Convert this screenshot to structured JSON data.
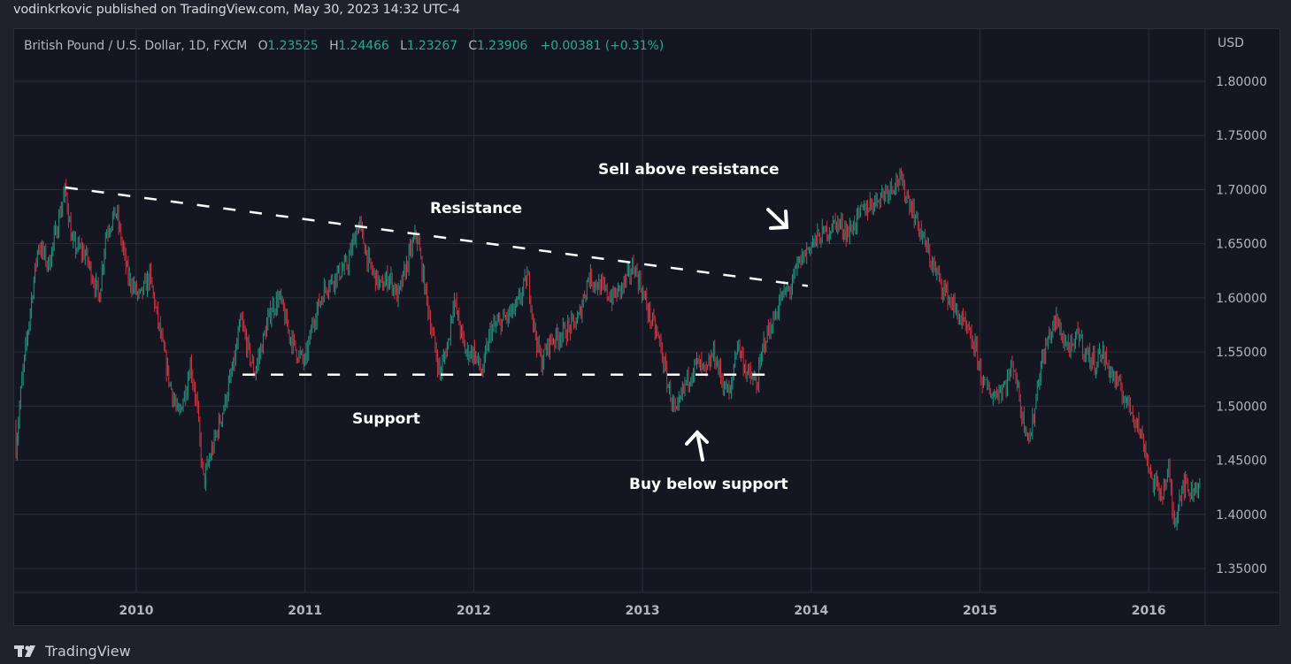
{
  "header": {
    "publisher_line": "vodinkrkovic published on TradingView.com, May 30, 2023 14:32 UTC-4"
  },
  "legend": {
    "symbol": "British Pound / U.S. Dollar, 1D, FXCM",
    "open_label": "O",
    "open": "1.23525",
    "high_label": "H",
    "high": "1.24466",
    "low_label": "L",
    "low": "1.23267",
    "close_label": "C",
    "close": "1.23906",
    "change": "+0.00381 (+0.31%)"
  },
  "price_axis": {
    "currency": "USD",
    "ticks": [
      "1.80000",
      "1.75000",
      "1.70000",
      "1.65000",
      "1.60000",
      "1.55000",
      "1.50000",
      "1.45000",
      "1.40000",
      "1.35000"
    ]
  },
  "time_axis": {
    "ticks": [
      "2010",
      "2011",
      "2012",
      "2013",
      "2014",
      "2015",
      "2016"
    ]
  },
  "annotations": {
    "resistance_label": "Resistance",
    "support_label": "Support",
    "sell_label": "Sell above resistance",
    "buy_label": "Buy below support"
  },
  "branding": {
    "logo_text": "TradingView",
    "logo_mark": "TV-logo-icon"
  },
  "colors": {
    "up": "#22ab94",
    "down": "#f23645",
    "background": "#141722",
    "frame": "#1f222c",
    "grid": "#2a2e39",
    "annotation": "#ffffff"
  },
  "chart_data": {
    "type": "candlestick",
    "title": "British Pound / U.S. Dollar, 1D, FXCM",
    "ylabel": "USD",
    "ylim": [
      1.33,
      1.82
    ],
    "xlim": [
      2009.25,
      2016.35
    ],
    "grid": true,
    "x_ticks": [
      2010,
      2011,
      2012,
      2013,
      2014,
      2015,
      2016
    ],
    "y_ticks": [
      1.35,
      1.4,
      1.45,
      1.5,
      1.55,
      1.6,
      1.65,
      1.7,
      1.75,
      1.8
    ],
    "close_path": [
      [
        2009.25,
        1.48
      ],
      [
        2009.28,
        1.45
      ],
      [
        2009.32,
        1.52
      ],
      [
        2009.38,
        1.6
      ],
      [
        2009.42,
        1.65
      ],
      [
        2009.48,
        1.63
      ],
      [
        2009.55,
        1.68
      ],
      [
        2009.58,
        1.7
      ],
      [
        2009.62,
        1.65
      ],
      [
        2009.7,
        1.64
      ],
      [
        2009.78,
        1.6
      ],
      [
        2009.82,
        1.66
      ],
      [
        2009.88,
        1.68
      ],
      [
        2009.95,
        1.62
      ],
      [
        2010.02,
        1.6
      ],
      [
        2010.08,
        1.62
      ],
      [
        2010.15,
        1.56
      ],
      [
        2010.2,
        1.52
      ],
      [
        2010.25,
        1.49
      ],
      [
        2010.3,
        1.52
      ],
      [
        2010.32,
        1.54
      ],
      [
        2010.36,
        1.5
      ],
      [
        2010.38,
        1.46
      ],
      [
        2010.4,
        1.43
      ],
      [
        2010.45,
        1.46
      ],
      [
        2010.52,
        1.5
      ],
      [
        2010.58,
        1.54
      ],
      [
        2010.62,
        1.58
      ],
      [
        2010.65,
        1.56
      ],
      [
        2010.7,
        1.53
      ],
      [
        2010.75,
        1.56
      ],
      [
        2010.8,
        1.59
      ],
      [
        2010.85,
        1.6
      ],
      [
        2010.9,
        1.57
      ],
      [
        2010.95,
        1.55
      ],
      [
        2011.0,
        1.54
      ],
      [
        2011.05,
        1.58
      ],
      [
        2011.12,
        1.61
      ],
      [
        2011.18,
        1.62
      ],
      [
        2011.25,
        1.63
      ],
      [
        2011.32,
        1.67
      ],
      [
        2011.38,
        1.63
      ],
      [
        2011.45,
        1.61
      ],
      [
        2011.5,
        1.62
      ],
      [
        2011.55,
        1.6
      ],
      [
        2011.62,
        1.64
      ],
      [
        2011.66,
        1.66
      ],
      [
        2011.7,
        1.62
      ],
      [
        2011.75,
        1.57
      ],
      [
        2011.8,
        1.53
      ],
      [
        2011.85,
        1.56
      ],
      [
        2011.88,
        1.6
      ],
      [
        2011.95,
        1.55
      ],
      [
        2012.0,
        1.55
      ],
      [
        2012.05,
        1.53
      ],
      [
        2012.1,
        1.57
      ],
      [
        2012.18,
        1.58
      ],
      [
        2012.25,
        1.59
      ],
      [
        2012.32,
        1.62
      ],
      [
        2012.36,
        1.57
      ],
      [
        2012.4,
        1.54
      ],
      [
        2012.45,
        1.56
      ],
      [
        2012.55,
        1.57
      ],
      [
        2012.62,
        1.58
      ],
      [
        2012.68,
        1.62
      ],
      [
        2012.75,
        1.61
      ],
      [
        2012.82,
        1.6
      ],
      [
        2012.88,
        1.61
      ],
      [
        2012.95,
        1.63
      ],
      [
        2013.05,
        1.58
      ],
      [
        2013.1,
        1.56
      ],
      [
        2013.15,
        1.52
      ],
      [
        2013.2,
        1.49
      ],
      [
        2013.25,
        1.52
      ],
      [
        2013.32,
        1.54
      ],
      [
        2013.38,
        1.53
      ],
      [
        2013.42,
        1.55
      ],
      [
        2013.48,
        1.52
      ],
      [
        2013.52,
        1.51
      ],
      [
        2013.56,
        1.56
      ],
      [
        2013.62,
        1.53
      ],
      [
        2013.68,
        1.52
      ],
      [
        2013.72,
        1.56
      ],
      [
        2013.78,
        1.58
      ],
      [
        2013.82,
        1.6
      ],
      [
        2013.88,
        1.61
      ],
      [
        2013.92,
        1.63
      ],
      [
        2014.0,
        1.65
      ],
      [
        2014.08,
        1.66
      ],
      [
        2014.15,
        1.67
      ],
      [
        2014.22,
        1.66
      ],
      [
        2014.3,
        1.68
      ],
      [
        2014.38,
        1.69
      ],
      [
        2014.45,
        1.7
      ],
      [
        2014.52,
        1.71
      ],
      [
        2014.58,
        1.69
      ],
      [
        2014.65,
        1.66
      ],
      [
        2014.72,
        1.63
      ],
      [
        2014.78,
        1.61
      ],
      [
        2014.85,
        1.59
      ],
      [
        2014.92,
        1.57
      ],
      [
        2014.98,
        1.55
      ],
      [
        2015.02,
        1.52
      ],
      [
        2015.08,
        1.51
      ],
      [
        2015.15,
        1.52
      ],
      [
        2015.2,
        1.54
      ],
      [
        2015.25,
        1.49
      ],
      [
        2015.3,
        1.47
      ],
      [
        2015.35,
        1.53
      ],
      [
        2015.4,
        1.56
      ],
      [
        2015.45,
        1.58
      ],
      [
        2015.5,
        1.56
      ],
      [
        2015.55,
        1.55
      ],
      [
        2015.58,
        1.57
      ],
      [
        2015.62,
        1.55
      ],
      [
        2015.68,
        1.54
      ],
      [
        2015.72,
        1.55
      ],
      [
        2015.78,
        1.53
      ],
      [
        2015.85,
        1.51
      ],
      [
        2015.92,
        1.49
      ],
      [
        2015.98,
        1.46
      ],
      [
        2016.02,
        1.43
      ],
      [
        2016.08,
        1.42
      ],
      [
        2016.12,
        1.44
      ],
      [
        2016.15,
        1.39
      ],
      [
        2016.2,
        1.43
      ],
      [
        2016.25,
        1.42
      ],
      [
        2016.3,
        1.43
      ],
      [
        2016.35,
        1.46
      ]
    ],
    "annotations": [
      {
        "type": "trendline",
        "label": "Resistance",
        "style": "dashed",
        "from": [
          2009.58,
          1.702
        ],
        "to": [
          2013.98,
          1.611
        ]
      },
      {
        "type": "hline",
        "label": "Support",
        "style": "dashed",
        "y": 1.529,
        "from_x": 2010.63,
        "to_x": 2013.76
      },
      {
        "type": "text",
        "text": "Sell above resistance",
        "x": 2013.6,
        "y": 1.72
      },
      {
        "type": "arrow",
        "direction": "down-right",
        "x": 2013.8,
        "y": 1.67
      },
      {
        "type": "text",
        "text": "Buy below support",
        "x": 2013.4,
        "y": 1.46
      },
      {
        "type": "arrow",
        "direction": "up",
        "x": 2013.35,
        "y": 1.48
      }
    ]
  }
}
